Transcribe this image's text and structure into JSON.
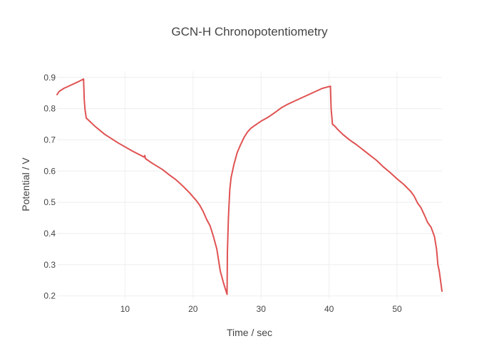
{
  "chart_data": {
    "type": "line",
    "title": "GCN-H Chronopotentiometry",
    "xlabel": "Time / sec",
    "ylabel": "Potential / V",
    "xlim": [
      0,
      56.6
    ],
    "ylim": [
      0.19,
      0.92
    ],
    "x_ticks": [
      10,
      20,
      30,
      40,
      50
    ],
    "y_ticks": [
      0.2,
      0.3,
      0.4,
      0.5,
      0.6,
      0.7,
      0.8,
      0.9
    ],
    "grid": true,
    "legend": "none",
    "line_color": "#e05252",
    "series": [
      {
        "x": [
          0,
          0.3,
          1,
          2,
          3,
          3.9,
          4.0,
          4.1,
          4.3,
          5.5,
          7,
          9,
          11,
          12.8,
          12.9,
          13.0,
          14,
          15.5,
          16.5,
          17.5,
          18.5,
          19.5,
          20.5,
          21,
          21.5,
          22,
          22.5,
          23,
          23.5,
          24,
          24.5,
          25,
          25.05,
          25.2,
          25.4,
          25.6,
          26,
          26.5,
          27,
          27.5,
          28,
          28.5,
          29,
          30,
          31,
          32,
          33,
          34,
          35,
          36,
          37,
          38,
          39,
          40.2,
          40.3,
          40.5,
          40.8,
          41.2,
          42,
          43,
          44,
          45,
          46,
          47,
          48,
          49,
          50,
          51,
          52,
          52.5,
          53,
          53.5,
          54,
          54.5,
          55,
          55.5,
          55.8,
          56,
          56.2,
          56.6
        ],
        "y": [
          0.845,
          0.855,
          0.865,
          0.875,
          0.885,
          0.895,
          0.83,
          0.8,
          0.77,
          0.745,
          0.718,
          0.69,
          0.665,
          0.645,
          0.65,
          0.64,
          0.625,
          0.605,
          0.588,
          0.572,
          0.552,
          0.53,
          0.505,
          0.49,
          0.47,
          0.445,
          0.425,
          0.39,
          0.35,
          0.28,
          0.24,
          0.205,
          0.34,
          0.45,
          0.54,
          0.58,
          0.62,
          0.66,
          0.685,
          0.708,
          0.725,
          0.737,
          0.745,
          0.76,
          0.772,
          0.787,
          0.803,
          0.815,
          0.825,
          0.835,
          0.845,
          0.855,
          0.865,
          0.872,
          0.8,
          0.75,
          0.745,
          0.735,
          0.718,
          0.7,
          0.685,
          0.668,
          0.651,
          0.634,
          0.613,
          0.595,
          0.575,
          0.557,
          0.535,
          0.52,
          0.498,
          0.483,
          0.46,
          0.435,
          0.42,
          0.39,
          0.35,
          0.3,
          0.28,
          0.215
        ]
      }
    ]
  }
}
